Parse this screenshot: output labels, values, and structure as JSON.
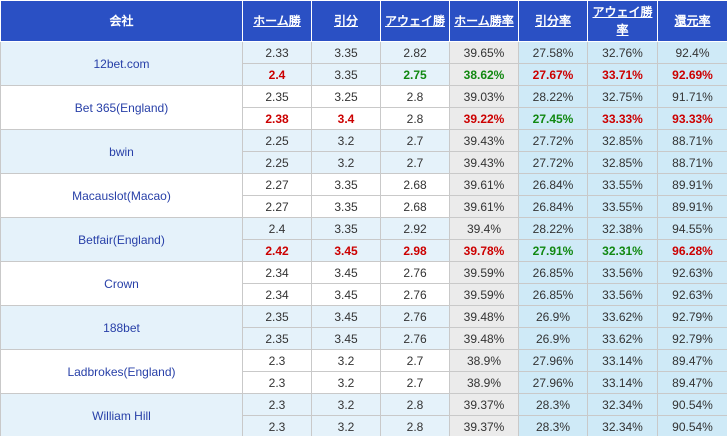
{
  "header": {
    "company": "会社",
    "home": "ホーム勝",
    "draw": "引分",
    "away": "アウェイ勝",
    "home_rate": "ホーム勝率",
    "draw_rate": "引分率",
    "away_rate_line1": "アウェイ勝",
    "away_rate_line2": "率",
    "return_rate": "還元率"
  },
  "colors": {
    "header_bg": "#2a50c4",
    "up": "#cc0000",
    "down": "#118811",
    "band": "#e5f2fa",
    "home_rate_bg": "#ebebeb",
    "rate_bg": "#cfeaf7"
  },
  "bookmakers": [
    {
      "name": "12bet.com",
      "band": "blue",
      "rows": [
        {
          "values": [
            "2.33",
            "3.35",
            "2.82",
            "39.65%",
            "27.58%",
            "32.76%",
            "92.4%"
          ],
          "colors": [
            "",
            "",
            "",
            "",
            "",
            "",
            ""
          ]
        },
        {
          "values": [
            "2.4",
            "3.35",
            "2.75",
            "38.62%",
            "27.67%",
            "33.71%",
            "92.69%"
          ],
          "colors": [
            "red",
            "",
            "green",
            "green",
            "red",
            "red",
            "red"
          ]
        }
      ]
    },
    {
      "name": "Bet 365(England)",
      "band": "white",
      "rows": [
        {
          "values": [
            "2.35",
            "3.25",
            "2.8",
            "39.03%",
            "28.22%",
            "32.75%",
            "91.71%"
          ],
          "colors": [
            "",
            "",
            "",
            "",
            "",
            "",
            ""
          ]
        },
        {
          "values": [
            "2.38",
            "3.4",
            "2.8",
            "39.22%",
            "27.45%",
            "33.33%",
            "93.33%"
          ],
          "colors": [
            "red",
            "red",
            "",
            "red",
            "green",
            "red",
            "red"
          ]
        }
      ]
    },
    {
      "name": "bwin",
      "band": "blue",
      "rows": [
        {
          "values": [
            "2.25",
            "3.2",
            "2.7",
            "39.43%",
            "27.72%",
            "32.85%",
            "88.71%"
          ],
          "colors": [
            "",
            "",
            "",
            "",
            "",
            "",
            ""
          ]
        },
        {
          "values": [
            "2.25",
            "3.2",
            "2.7",
            "39.43%",
            "27.72%",
            "32.85%",
            "88.71%"
          ],
          "colors": [
            "",
            "",
            "",
            "",
            "",
            "",
            ""
          ]
        }
      ]
    },
    {
      "name": "Macauslot(Macao)",
      "band": "white",
      "rows": [
        {
          "values": [
            "2.27",
            "3.35",
            "2.68",
            "39.61%",
            "26.84%",
            "33.55%",
            "89.91%"
          ],
          "colors": [
            "",
            "",
            "",
            "",
            "",
            "",
            ""
          ]
        },
        {
          "values": [
            "2.27",
            "3.35",
            "2.68",
            "39.61%",
            "26.84%",
            "33.55%",
            "89.91%"
          ],
          "colors": [
            "",
            "",
            "",
            "",
            "",
            "",
            ""
          ]
        }
      ]
    },
    {
      "name": "Betfair(England)",
      "band": "blue",
      "rows": [
        {
          "values": [
            "2.4",
            "3.35",
            "2.92",
            "39.4%",
            "28.22%",
            "32.38%",
            "94.55%"
          ],
          "colors": [
            "",
            "",
            "",
            "",
            "",
            "",
            ""
          ]
        },
        {
          "values": [
            "2.42",
            "3.45",
            "2.98",
            "39.78%",
            "27.91%",
            "32.31%",
            "96.28%"
          ],
          "colors": [
            "red",
            "red",
            "red",
            "red",
            "green",
            "green",
            "red"
          ]
        }
      ]
    },
    {
      "name": "Crown",
      "band": "white",
      "rows": [
        {
          "values": [
            "2.34",
            "3.45",
            "2.76",
            "39.59%",
            "26.85%",
            "33.56%",
            "92.63%"
          ],
          "colors": [
            "",
            "",
            "",
            "",
            "",
            "",
            ""
          ]
        },
        {
          "values": [
            "2.34",
            "3.45",
            "2.76",
            "39.59%",
            "26.85%",
            "33.56%",
            "92.63%"
          ],
          "colors": [
            "",
            "",
            "",
            "",
            "",
            "",
            ""
          ]
        }
      ]
    },
    {
      "name": "188bet",
      "band": "blue",
      "rows": [
        {
          "values": [
            "2.35",
            "3.45",
            "2.76",
            "39.48%",
            "26.9%",
            "33.62%",
            "92.79%"
          ],
          "colors": [
            "",
            "",
            "",
            "",
            "",
            "",
            ""
          ]
        },
        {
          "values": [
            "2.35",
            "3.45",
            "2.76",
            "39.48%",
            "26.9%",
            "33.62%",
            "92.79%"
          ],
          "colors": [
            "",
            "",
            "",
            "",
            "",
            "",
            ""
          ]
        }
      ]
    },
    {
      "name": "Ladbrokes(England)",
      "band": "white",
      "rows": [
        {
          "values": [
            "2.3",
            "3.2",
            "2.7",
            "38.9%",
            "27.96%",
            "33.14%",
            "89.47%"
          ],
          "colors": [
            "",
            "",
            "",
            "",
            "",
            "",
            ""
          ]
        },
        {
          "values": [
            "2.3",
            "3.2",
            "2.7",
            "38.9%",
            "27.96%",
            "33.14%",
            "89.47%"
          ],
          "colors": [
            "",
            "",
            "",
            "",
            "",
            "",
            ""
          ]
        }
      ]
    },
    {
      "name": "William Hill",
      "band": "blue",
      "rows": [
        {
          "values": [
            "2.3",
            "3.2",
            "2.8",
            "39.37%",
            "28.3%",
            "32.34%",
            "90.54%"
          ],
          "colors": [
            "",
            "",
            "",
            "",
            "",
            "",
            ""
          ]
        },
        {
          "values": [
            "2.3",
            "3.2",
            "2.8",
            "39.37%",
            "28.3%",
            "32.34%",
            "90.54%"
          ],
          "colors": [
            "",
            "",
            "",
            "",
            "",
            "",
            ""
          ]
        }
      ]
    }
  ]
}
